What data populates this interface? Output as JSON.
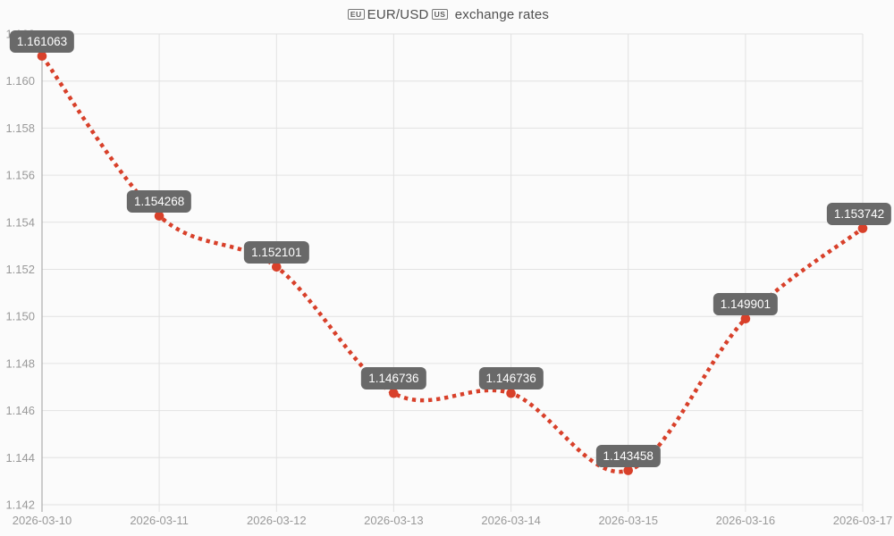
{
  "title": {
    "eu_flag": "EU",
    "pair": "EUR/USD",
    "us_flag": "US",
    "suffix": "exchange rates"
  },
  "chart_data": {
    "type": "line",
    "title": "EU-flag EUR/USD US-flag exchange rates",
    "x": [
      "2026-03-10",
      "2026-03-11",
      "2026-03-12",
      "2026-03-13",
      "2026-03-14",
      "2026-03-15",
      "2026-03-16",
      "2026-03-17"
    ],
    "values": [
      1.161063,
      1.154268,
      1.152101,
      1.146736,
      1.146736,
      1.143458,
      1.149901,
      1.153742
    ],
    "point_labels": [
      "1.161063",
      "1.154268",
      "1.152101",
      "1.146736",
      "1.146736",
      "1.143458",
      "1.149901",
      "1.153742"
    ],
    "series_name": "EUR/USD",
    "xlabel": "",
    "ylabel": "",
    "ylim": [
      1.142,
      1.162
    ],
    "yticks": [
      "1.142",
      "1.144",
      "1.146",
      "1.148",
      "1.150",
      "1.152",
      "1.154",
      "1.156",
      "1.158",
      "1.160",
      "1.162"
    ],
    "grid": true,
    "legend_position": "none",
    "line_style": "dotted-spline",
    "colors": {
      "line": "#d8402a",
      "marker": "#d8402a",
      "label_bg": "#696969",
      "label_text": "#ffffff",
      "grid": "#e2e2e2",
      "axis_line": "#adadad",
      "tick_text": "#999999",
      "title_text": "#4f4f4f",
      "background": "#fbfbfb"
    }
  }
}
